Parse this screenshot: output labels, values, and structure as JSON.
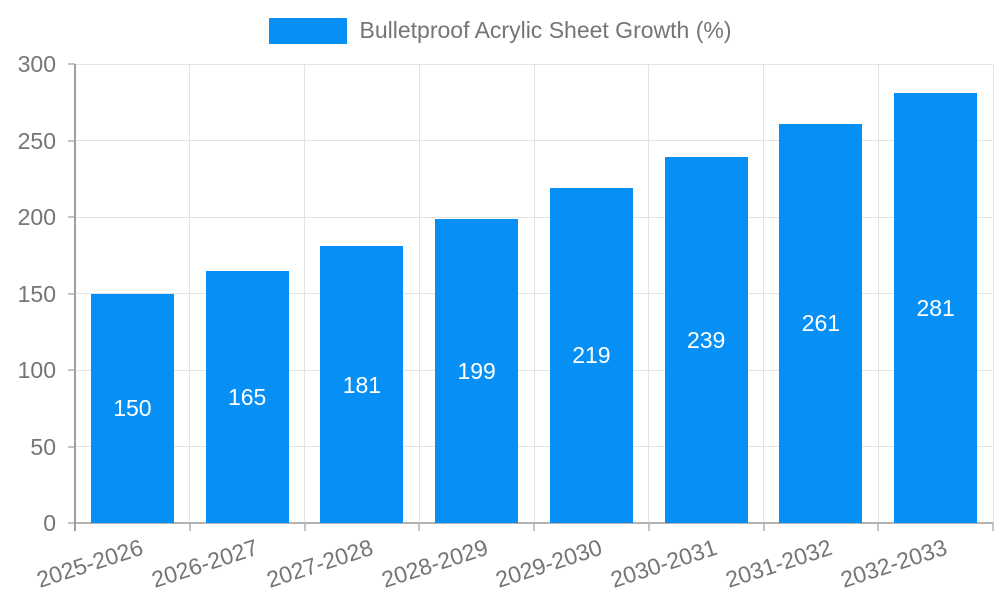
{
  "legend": {
    "label": "Bulletproof Acrylic Sheet Growth (%)"
  },
  "colors": {
    "bar": "#0690f6",
    "text": "#757575",
    "grid": "#e3e3e3",
    "axis": "#9e9e9e",
    "baseline": "#b3b3b3",
    "tick": "#c4c4c4",
    "value_label": "#ffffff"
  },
  "chart_data": {
    "type": "bar",
    "title": "Bulletproof Acrylic Sheet Growth (%)",
    "categories": [
      "2025-2026",
      "2026-2027",
      "2027-2028",
      "2028-2029",
      "2029-2030",
      "2030-2031",
      "2031-2032",
      "2032-2033"
    ],
    "values": [
      150,
      165,
      181,
      199,
      219,
      239,
      261,
      281
    ],
    "xlabel": "",
    "ylabel": "",
    "ylim": [
      0,
      300
    ],
    "yticks": [
      0,
      50,
      100,
      150,
      200,
      250,
      300
    ],
    "grid": true,
    "legend_position": "top",
    "value_labels": "inside-center",
    "x_label_rotation_deg": -18
  }
}
